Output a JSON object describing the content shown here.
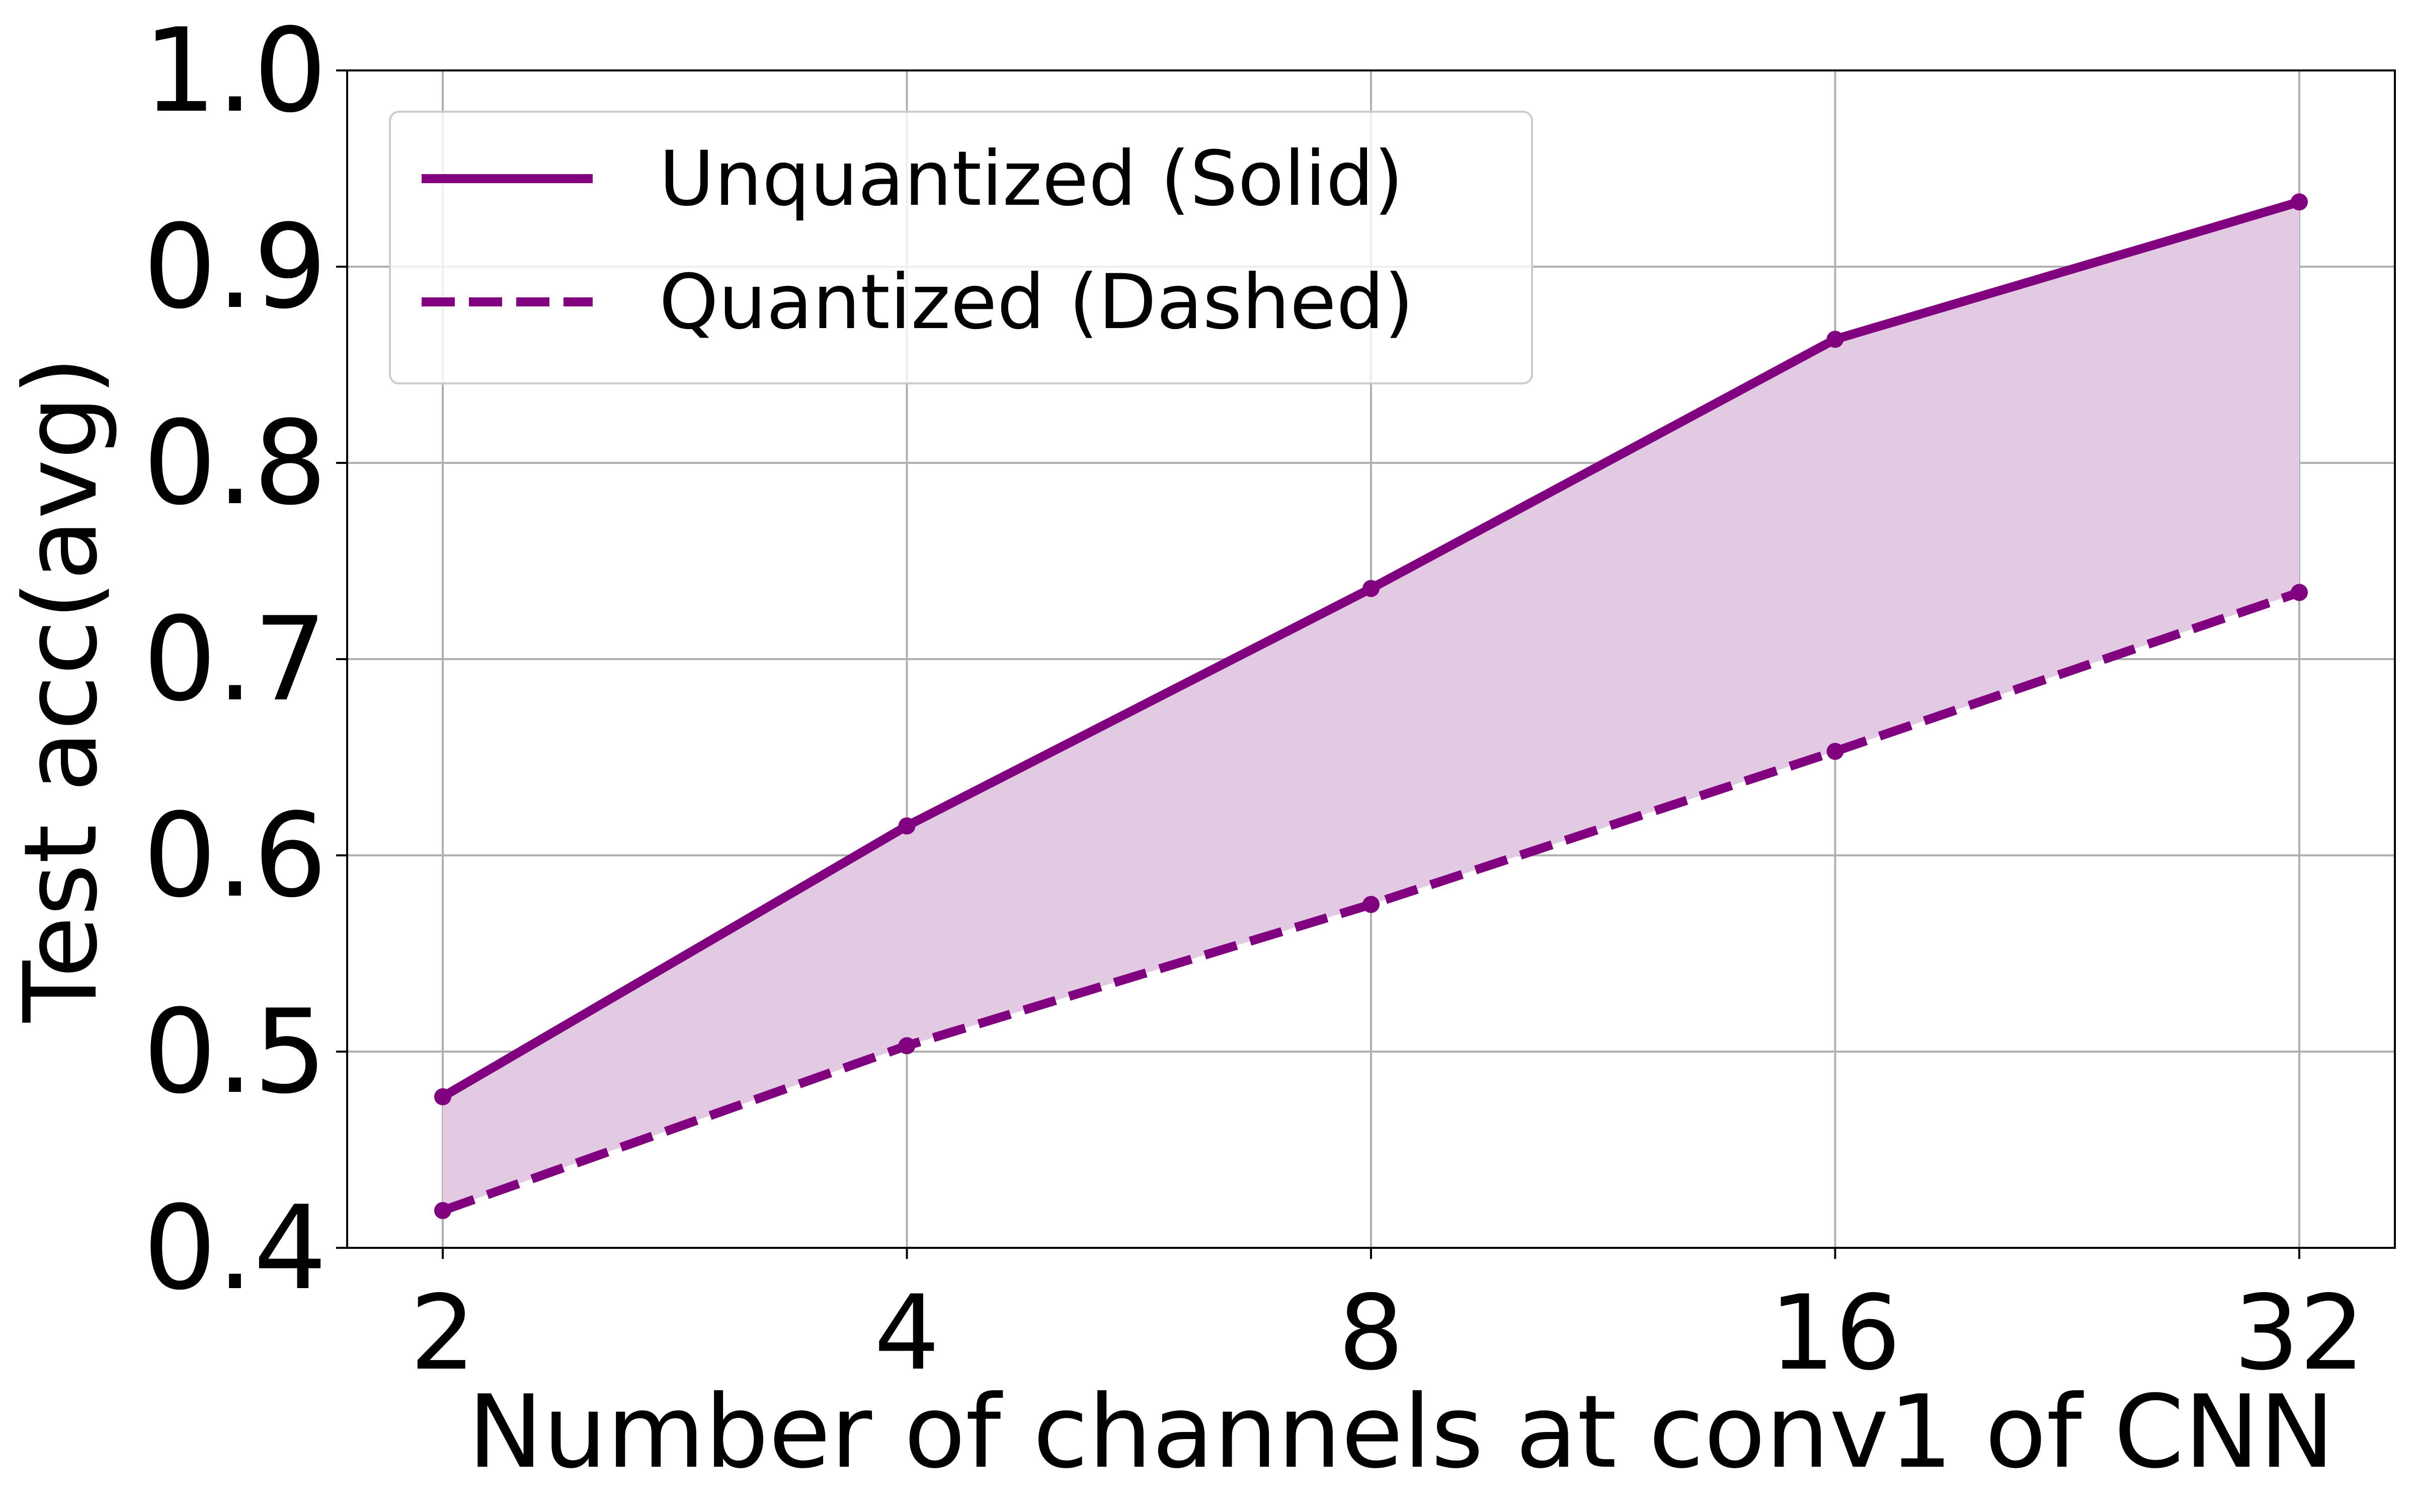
{
  "chart_data": {
    "type": "line",
    "xlabel": "Number of channels at conv1 of CNN",
    "ylabel": "Test acc(avg)",
    "x_scale": "log2",
    "x": [
      2,
      4,
      8,
      16,
      32
    ],
    "xticks": [
      "2",
      "4",
      "8",
      "16",
      "32"
    ],
    "ylim": [
      0.4,
      1.0
    ],
    "yticks": [
      "0.4",
      "0.5",
      "0.6",
      "0.7",
      "0.8",
      "0.9",
      "1.0"
    ],
    "grid": true,
    "legend_placement": "top-left",
    "fill_between_series": true,
    "colors": {
      "line": "#800080",
      "fill": "#e3cae3",
      "grid": "#b0b0b0"
    },
    "series": [
      {
        "name": "Unquantized (Solid)",
        "style": "solid",
        "values": [
          0.477,
          0.615,
          0.736,
          0.863,
          0.933
        ]
      },
      {
        "name": "Quantized (Dashed)",
        "style": "dashed",
        "values": [
          0.419,
          0.503,
          0.575,
          0.653,
          0.734
        ]
      }
    ]
  }
}
